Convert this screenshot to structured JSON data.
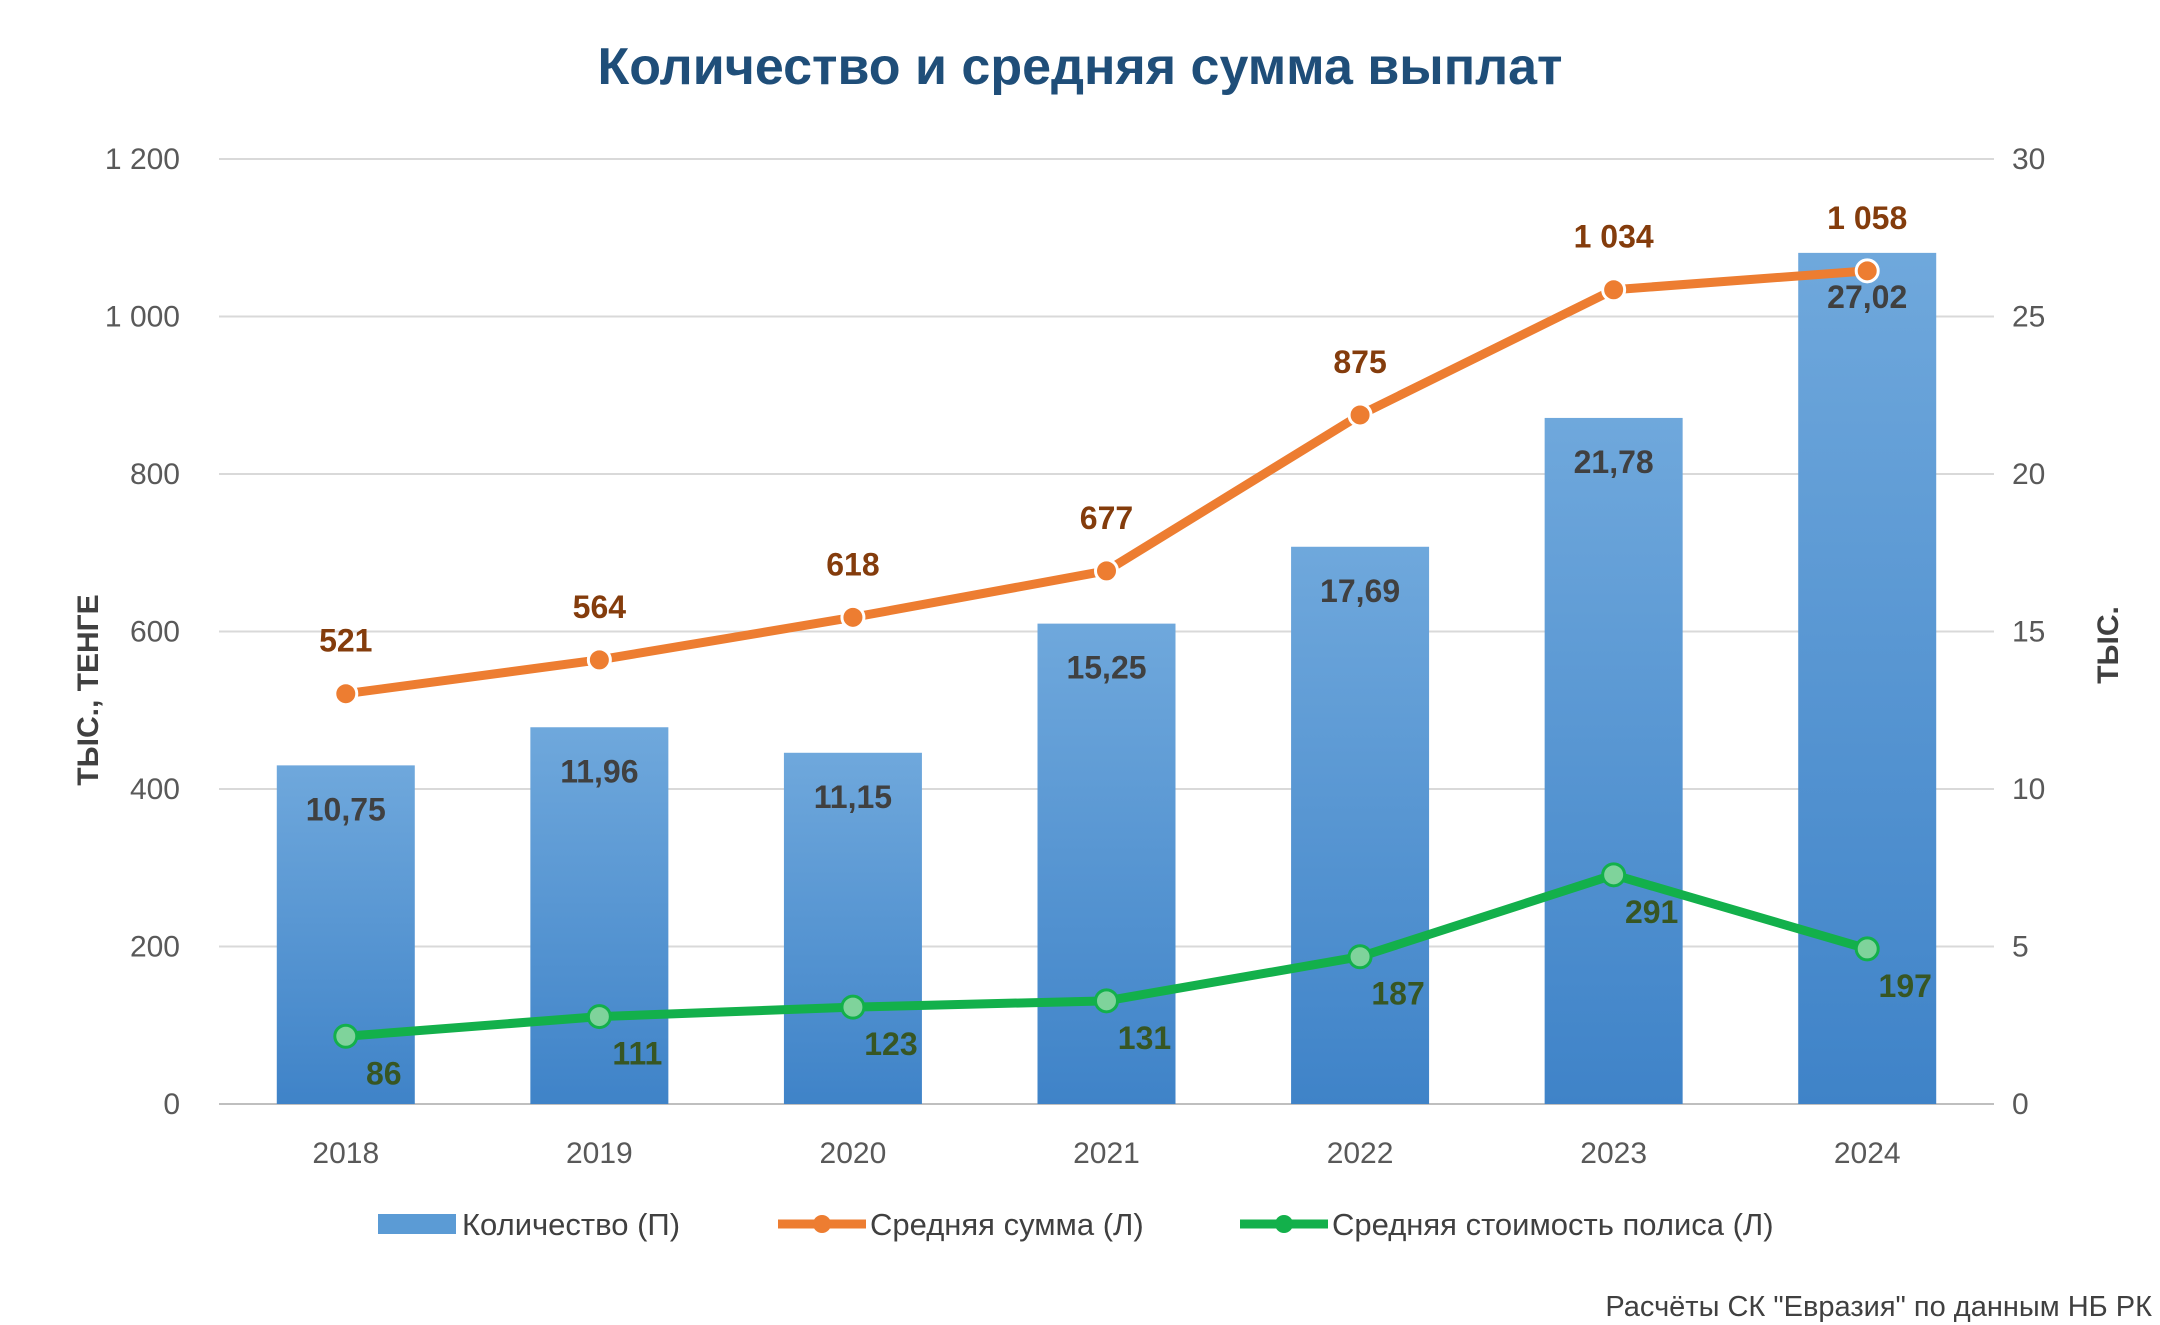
{
  "chart_data": {
    "type": "bar+line",
    "title": "Количество и средняя сумма выплат",
    "categories": [
      "2018",
      "2019",
      "2020",
      "2021",
      "2022",
      "2023",
      "2024"
    ],
    "left_axis": {
      "label": "ТЫС., ТЕНГЕ",
      "range": [
        0,
        1200
      ],
      "ticks": [
        "0",
        "200",
        "400",
        "600",
        "800",
        "1 000",
        "1 200"
      ]
    },
    "right_axis": {
      "label": "ТЫС.",
      "range": [
        0,
        30
      ],
      "ticks": [
        "0",
        "5",
        "10",
        "15",
        "20",
        "25",
        "30"
      ]
    },
    "grid": true,
    "legend_position": "bottom",
    "series": [
      {
        "name": "Количество (П)",
        "type": "bar",
        "axis": "right",
        "color": "#5b9bd5",
        "values": [
          10.75,
          11.96,
          11.15,
          15.25,
          17.69,
          21.78,
          27.02
        ],
        "labels": [
          "10,75",
          "11,96",
          "11,15",
          "15,25",
          "17,69",
          "21,78",
          "27,02"
        ]
      },
      {
        "name": "Средняя сумма (Л)",
        "type": "line",
        "axis": "left",
        "color": "#ed7d31",
        "values": [
          521,
          564,
          618,
          677,
          875,
          1034,
          1058
        ],
        "labels": [
          "521",
          "564",
          "618",
          "677",
          "875",
          "1 034",
          "1 058"
        ]
      },
      {
        "name": "Средняя стоимость полиса (Л)",
        "type": "line",
        "axis": "left",
        "color": "#13b04b",
        "values": [
          86,
          111,
          123,
          131,
          187,
          291,
          197
        ],
        "labels": [
          "86",
          "111",
          "123",
          "131",
          "187",
          "291",
          "197"
        ]
      }
    ],
    "source": "Расчёты СК \"Евразия\" по данным НБ РК"
  }
}
